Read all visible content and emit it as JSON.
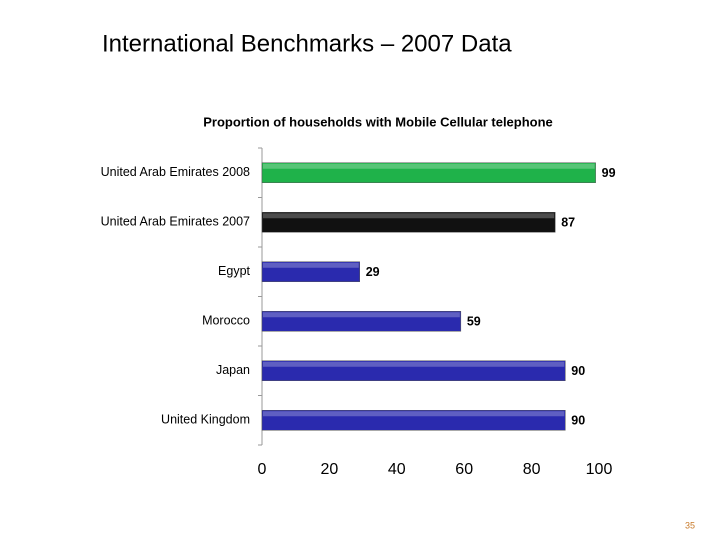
{
  "slide_title": "International Benchmarks – 2007 Data",
  "page_number": "35",
  "chart_data": {
    "type": "hbar",
    "title": "Proportion of households  with Mobile Cellular telephone",
    "categories": [
      "United Arab Emirates 2008",
      "United Arab Emirates 2007",
      "Egypt",
      "Morocco",
      "Japan",
      "United Kingdom"
    ],
    "values": [
      99,
      87,
      29,
      59,
      90,
      90
    ],
    "colors": [
      "#1fb24a",
      "#111111",
      "#2a2aae",
      "#2a2aae",
      "#2a2aae",
      "#2a2aae"
    ],
    "xlim": [
      0,
      100
    ],
    "xticks": [
      0,
      20,
      40,
      60,
      80,
      100
    ]
  }
}
